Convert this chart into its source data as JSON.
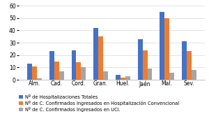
{
  "categories": [
    "Alm.",
    "Cad.",
    "Cord.",
    "Gran.",
    "Huel.",
    "Jaén",
    "Mal.",
    "Sev."
  ],
  "series": [
    {
      "label": "Nº de Hospitalizaciones Totales",
      "color": "#4472C4",
      "values": [
        13,
        23,
        24,
        42,
        4,
        33,
        55,
        31
      ]
    },
    {
      "label": "Nº de C. Confirmados Ingresados en Hospitalización Convencional",
      "color": "#ED7D31",
      "values": [
        11,
        15,
        14,
        35,
        2,
        24,
        50,
        23
      ]
    },
    {
      "label": "Nº de C. Confirmados Ingresados en UCI.",
      "color": "#A5A5A5",
      "values": [
        1,
        7,
        10,
        7,
        3,
        9,
        6,
        8
      ]
    }
  ],
  "ylim": [
    0,
    60
  ],
  "yticks": [
    0,
    10,
    20,
    30,
    40,
    50,
    60
  ],
  "background_color": "#FFFFFF",
  "legend_fontsize": 4.8,
  "tick_fontsize": 5.5,
  "bar_width": 0.22
}
